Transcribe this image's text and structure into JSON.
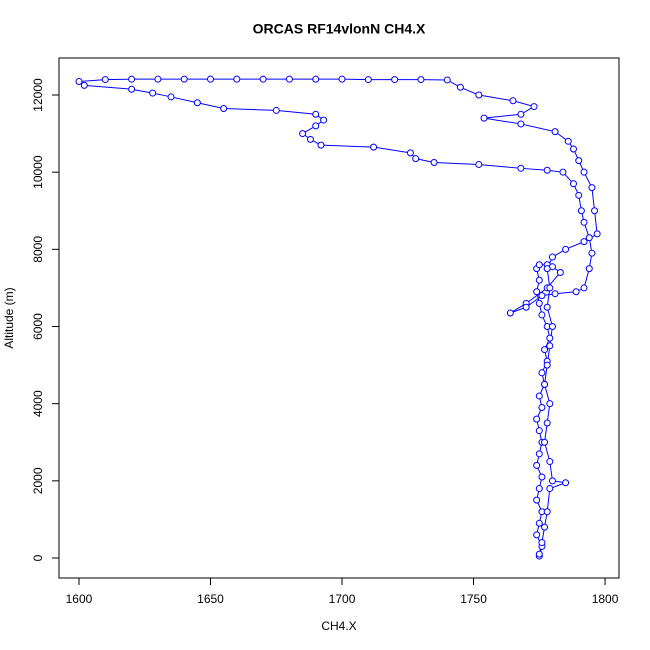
{
  "chart_data": {
    "type": "line-points",
    "title": "ORCAS RF14vlonN CH4.X",
    "x_label": "CH4.X",
    "y_label": "Altitude (m)",
    "color": "#0000ff",
    "x": [
      1775,
      1776,
      1774,
      1775,
      1776,
      1774,
      1775,
      1776,
      1774,
      1775,
      1776,
      1775,
      1774,
      1776,
      1775,
      1777,
      1776,
      1778,
      1777,
      1779,
      1778,
      1776,
      1775,
      1774,
      1775,
      1774,
      1775,
      1778,
      1780,
      1783,
      1778,
      1770,
      1764,
      1770,
      1776,
      1781,
      1789,
      1792,
      1794,
      1795,
      1794,
      1792,
      1791,
      1790,
      1788,
      1784,
      1778,
      1768,
      1752,
      1735,
      1728,
      1726,
      1712,
      1692,
      1688,
      1685,
      1690,
      1693,
      1690,
      1675,
      1655,
      1645,
      1635,
      1628,
      1620,
      1602,
      1600,
      1610,
      1620,
      1630,
      1640,
      1650,
      1660,
      1670,
      1680,
      1690,
      1700,
      1710,
      1720,
      1730,
      1740,
      1745,
      1752,
      1765,
      1773,
      1768,
      1754,
      1768,
      1781,
      1786,
      1788,
      1790,
      1792,
      1795,
      1796,
      1797,
      1792,
      1785,
      1780,
      1778,
      1779,
      1778,
      1780,
      1779,
      1778,
      1777,
      1779,
      1778,
      1777,
      1779,
      1780,
      1785,
      1779,
      1778,
      1777,
      1776,
      1775
    ],
    "values": [
      50,
      300,
      600,
      900,
      1200,
      1500,
      1800,
      2100,
      2400,
      2700,
      3000,
      3300,
      3600,
      3900,
      4200,
      4500,
      4800,
      5100,
      5400,
      5700,
      6000,
      6300,
      6600,
      6900,
      7200,
      7500,
      7600,
      7600,
      7550,
      7400,
      7000,
      6600,
      6350,
      6500,
      6800,
      6850,
      6900,
      7000,
      7500,
      7900,
      8300,
      8700,
      9000,
      9400,
      9700,
      10000,
      10050,
      10100,
      10200,
      10250,
      10350,
      10500,
      10650,
      10700,
      10850,
      11000,
      11200,
      11350,
      11500,
      11600,
      11650,
      11800,
      11950,
      12050,
      12150,
      12250,
      12350,
      12400,
      12410,
      12410,
      12410,
      12410,
      12410,
      12410,
      12410,
      12410,
      12410,
      12400,
      12400,
      12400,
      12390,
      12200,
      12000,
      11850,
      11700,
      11500,
      11400,
      11250,
      11050,
      10800,
      10600,
      10300,
      10000,
      9600,
      9000,
      8400,
      8200,
      8000,
      7800,
      7500,
      7000,
      6500,
      6000,
      5500,
      5000,
      4500,
      4000,
      3500,
      3000,
      2500,
      2000,
      1950,
      1800,
      1200,
      800,
      400,
      100
    ],
    "xlim": [
      1592.4,
      1805.3
    ],
    "ylim": [
      -518,
      12959
    ],
    "xticks": [
      1600,
      1650,
      1700,
      1750,
      1800
    ],
    "yticks": [
      0,
      2000,
      4000,
      6000,
      8000,
      10000,
      12000
    ]
  }
}
